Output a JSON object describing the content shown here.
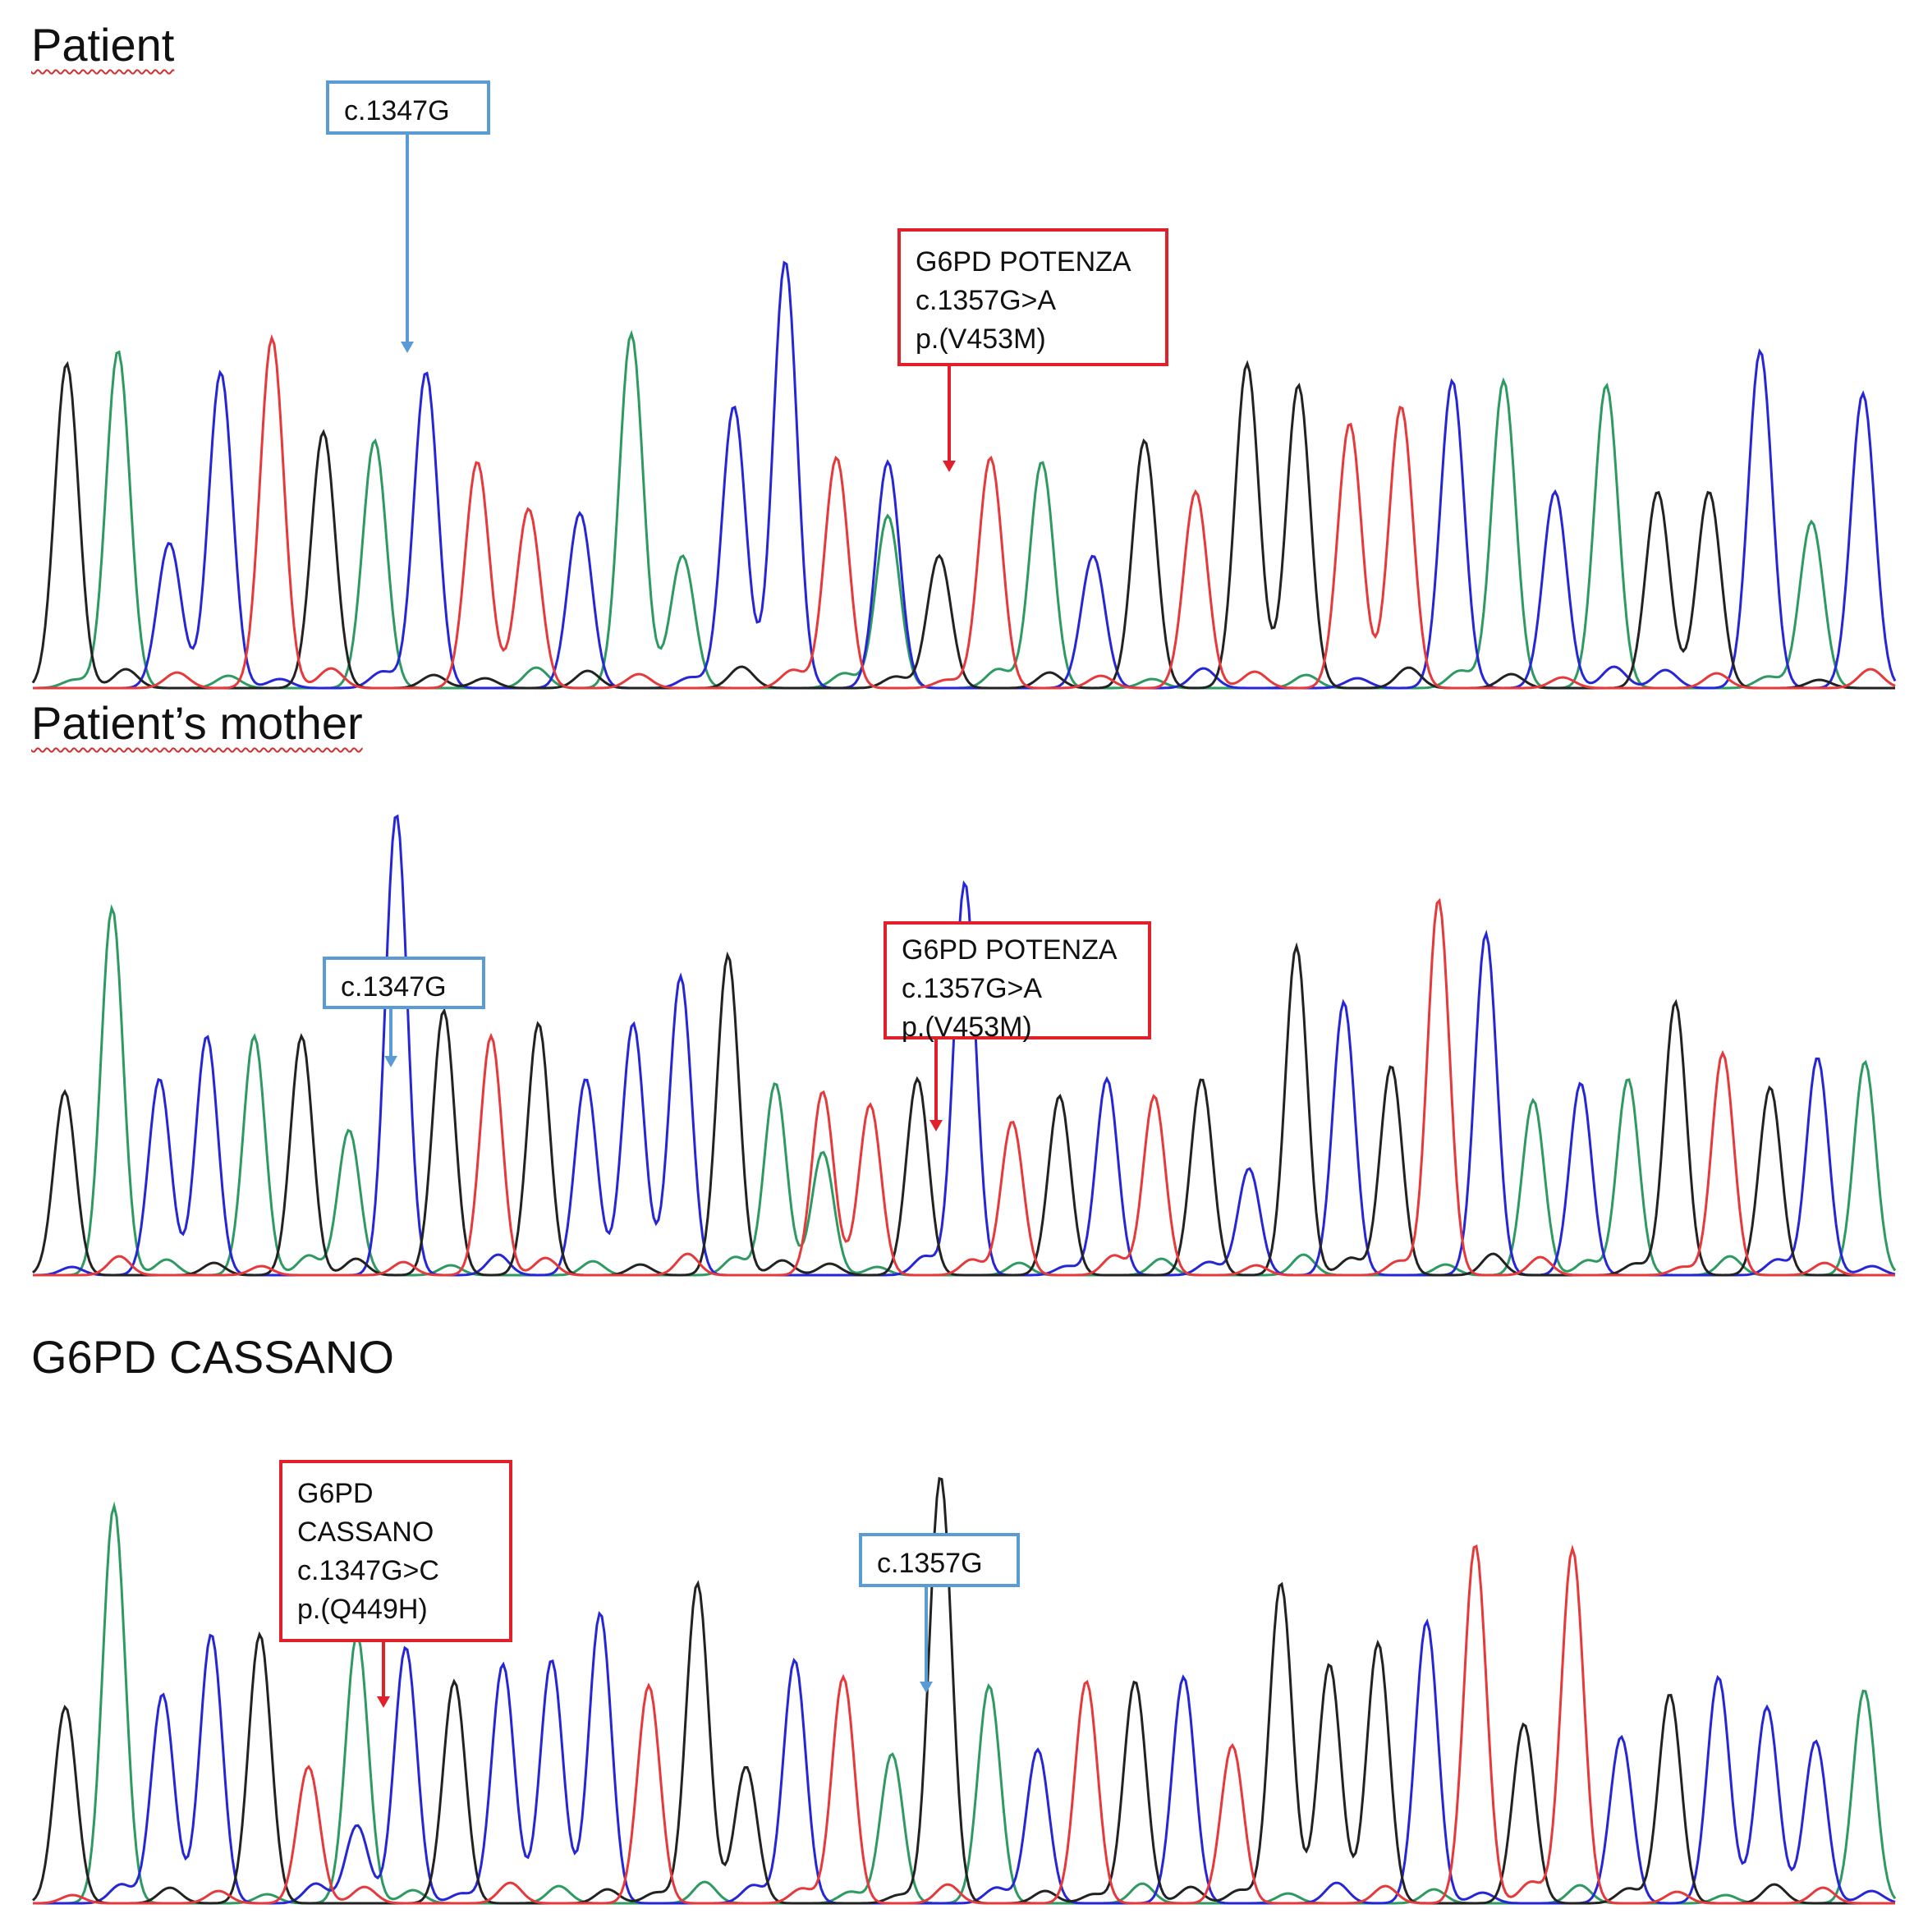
{
  "panels": [
    {
      "title": "Patient",
      "spell_underline": true,
      "boxes": [
        {
          "lines": [
            "c.1347G"
          ],
          "color": "#5b9bd5"
        },
        {
          "lines": [
            "G6PD POTENZA",
            "c.1357G>A",
            "p.(V453M)"
          ],
          "color": "#e0202a"
        }
      ]
    },
    {
      "title": "Patient’s mother",
      "spell_underline": true,
      "boxes": [
        {
          "lines": [
            "c.1347G"
          ],
          "color": "#5b9bd5"
        },
        {
          "lines": [
            "G6PD POTENZA",
            "c.1357G>A",
            "p.(V453M)"
          ],
          "color": "#e0202a"
        }
      ]
    },
    {
      "title": "G6PD CASSANO",
      "spell_underline": false,
      "boxes": [
        {
          "lines": [
            "G6PD",
            "CASSANO",
            "c.1347G>C",
            "p.(Q449H)"
          ],
          "color": "#e0202a"
        },
        {
          "lines": [
            "c.1357G"
          ],
          "color": "#5b9bd5"
        }
      ]
    }
  ],
  "trace_colors": {
    "A": "#2e9a62",
    "C": "#2626d6",
    "G": "#222222",
    "T": "#e6393b"
  },
  "base_calls": [
    "GACCTGACTTCAACCTCGTACGTGGTTCACAGGCAC",
    "GACCAGACGTGCCCGATTGCTGCTGCGCGTCACAGTGCA",
    "GACCGTACGCCCTGGCTAGACTGCTGGGCTGTCGCCCA"
  ]
}
